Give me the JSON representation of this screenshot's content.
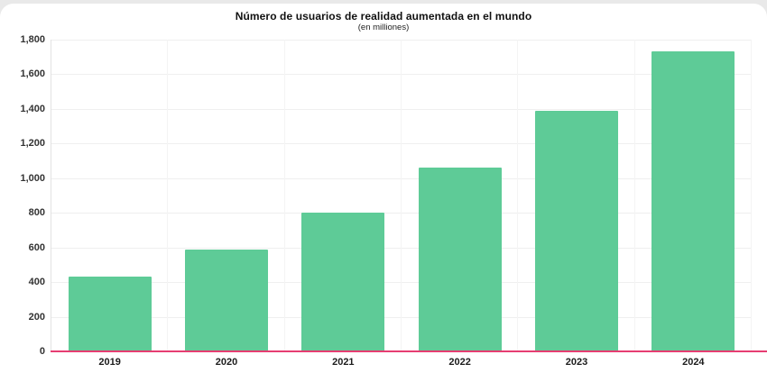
{
  "chart_data": {
    "type": "bar",
    "title": "Número de usuarios de realidad aumentada en el mundo",
    "subtitle": "(en milliones)",
    "categories": [
      "2019",
      "2020",
      "2021",
      "2022",
      "2023",
      "2024"
    ],
    "values": [
      430,
      590,
      800,
      1060,
      1390,
      1730
    ],
    "xlabel": "",
    "ylabel": "",
    "ylim": [
      0,
      1800
    ],
    "ytick_step": 200,
    "ytick_labels": [
      "0",
      "200",
      "400",
      "600",
      "800",
      "1,000",
      "1,200",
      "1,400",
      "1,600",
      "1,800"
    ],
    "grid": "on",
    "legend": "none",
    "colors": {
      "bar": "#5ecb97",
      "baseline": "#e63d72",
      "hgrid": "#efefef",
      "vgrid": "#f4f4f4",
      "axis_label": "#333333"
    }
  }
}
